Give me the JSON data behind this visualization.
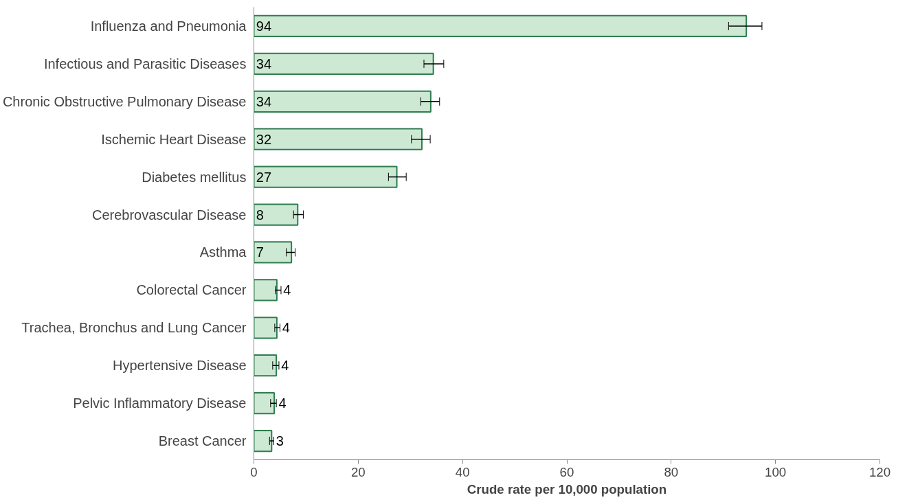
{
  "chart_data": {
    "type": "bar",
    "orientation": "horizontal",
    "xlabel": "Crude rate per 10,000 population",
    "categories": [
      "Influenza and Pneumonia",
      "Infectious and Parasitic Diseases",
      "Chronic Obstructive Pulmonary Disease",
      "Ischemic Heart Disease",
      "Diabetes mellitus",
      "Cerebrovascular Disease",
      "Asthma",
      "Colorectal Cancer",
      "Trachea, Bronchus and Lung Cancer",
      "Hypertensive Disease",
      "Pelvic Inflammatory Disease",
      "Breast Cancer"
    ],
    "values": [
      94.4,
      34.4,
      33.9,
      32.2,
      27.4,
      8.4,
      7.2,
      4.4,
      4.4,
      4.3,
      3.9,
      3.4
    ],
    "errors": [
      [
        91,
        97.4
      ],
      [
        32.6,
        36.4
      ],
      [
        32,
        35.6
      ],
      [
        30.2,
        33.8
      ],
      [
        25.8,
        29.2
      ],
      [
        7.6,
        9.5
      ],
      [
        6.2,
        7.9
      ],
      [
        4.1,
        5.2
      ],
      [
        4,
        5
      ],
      [
        3.6,
        4.8
      ],
      [
        3.2,
        4.3
      ],
      [
        3,
        3.8
      ]
    ],
    "value_labels": [
      "94",
      "34",
      "34",
      "32",
      "27",
      "8",
      "7",
      "4",
      "4",
      "4",
      "4",
      "3"
    ],
    "color": "#cde9d3",
    "xlim": [
      0,
      120
    ],
    "xticks": [
      0,
      20,
      40,
      60,
      80,
      100,
      120
    ],
    "grid": false
  }
}
